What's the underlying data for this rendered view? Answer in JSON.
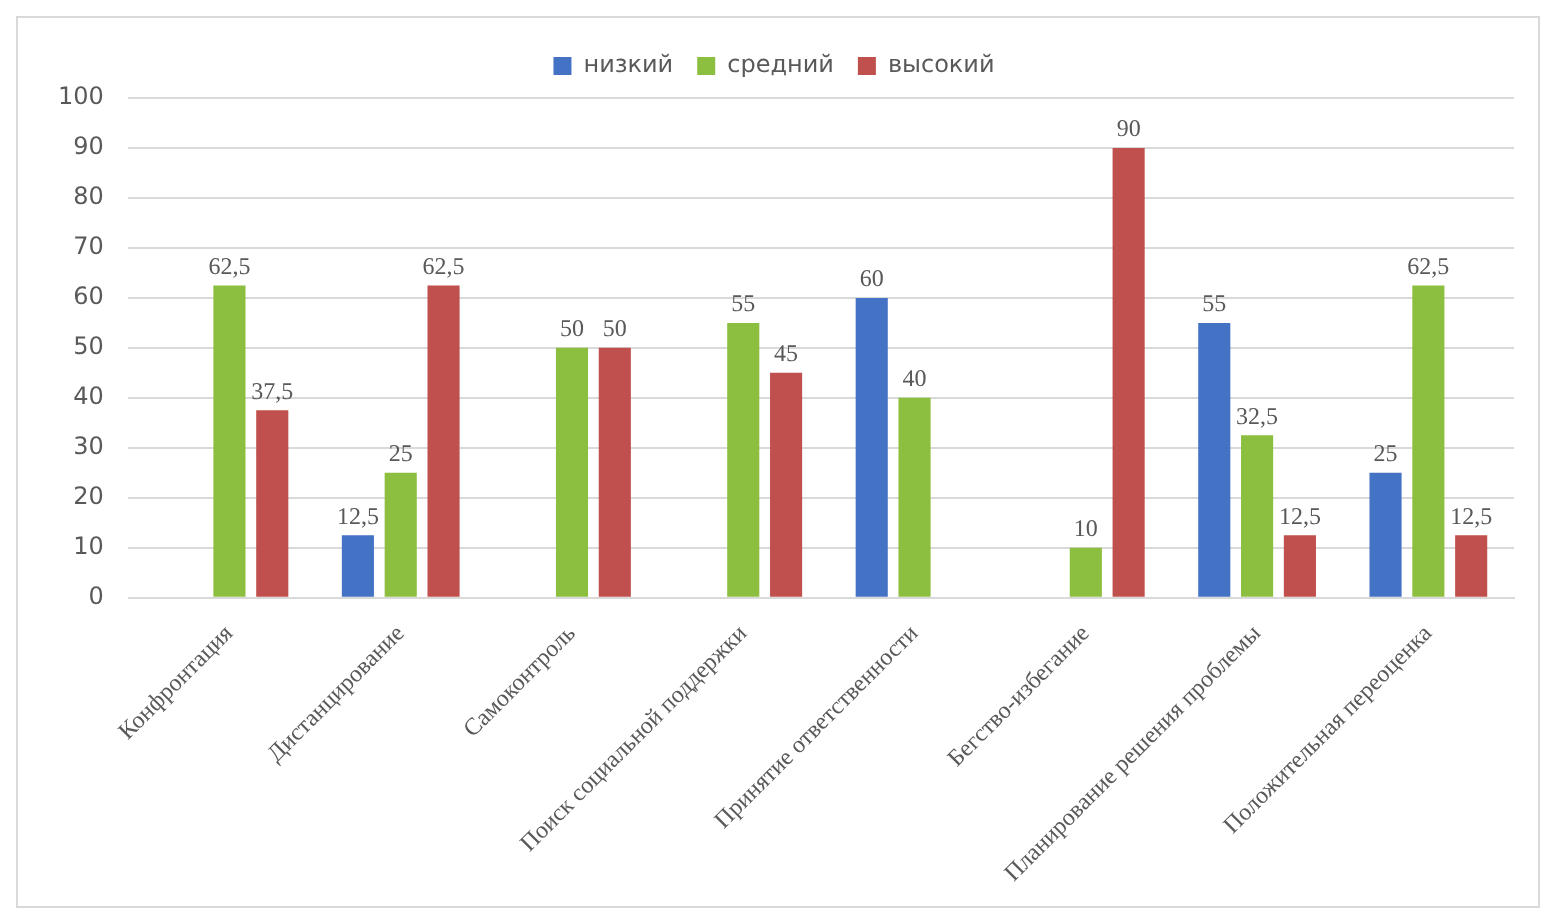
{
  "chart_data": {
    "type": "bar",
    "categories": [
      "Конфронтация",
      "Дистанцирование",
      "Самоконтроль",
      "Поиск социальной поддержки",
      "Принятие ответственности",
      "Бегство-избегание",
      "Планирование решения проблемы",
      "Положительная переоценка"
    ],
    "series": [
      {
        "name": "низкий",
        "color": "#4472c4",
        "values": [
          null,
          12.5,
          null,
          null,
          60,
          null,
          55,
          25
        ],
        "value_labels": [
          null,
          "12,5",
          null,
          null,
          "60",
          null,
          "55",
          "25"
        ]
      },
      {
        "name": "средний",
        "color": "#8cbf3f",
        "values": [
          62.5,
          25,
          50,
          55,
          40,
          10,
          32.5,
          62.5
        ],
        "value_labels": [
          "62,5",
          "25",
          "50",
          "55",
          "40",
          "10",
          "32,5",
          "62,5"
        ]
      },
      {
        "name": "высокий",
        "color": "#c0504d",
        "values": [
          37.5,
          62.5,
          50,
          45,
          null,
          90,
          12.5,
          12.5
        ],
        "value_labels": [
          "37,5",
          "62,5",
          "50",
          "45",
          null,
          "90",
          "12,5",
          "12,5"
        ]
      }
    ],
    "ylim": [
      0,
      100
    ],
    "yticks": [
      0,
      10,
      20,
      30,
      40,
      50,
      60,
      70,
      80,
      90,
      100
    ],
    "grid": "y",
    "legend": "top"
  }
}
